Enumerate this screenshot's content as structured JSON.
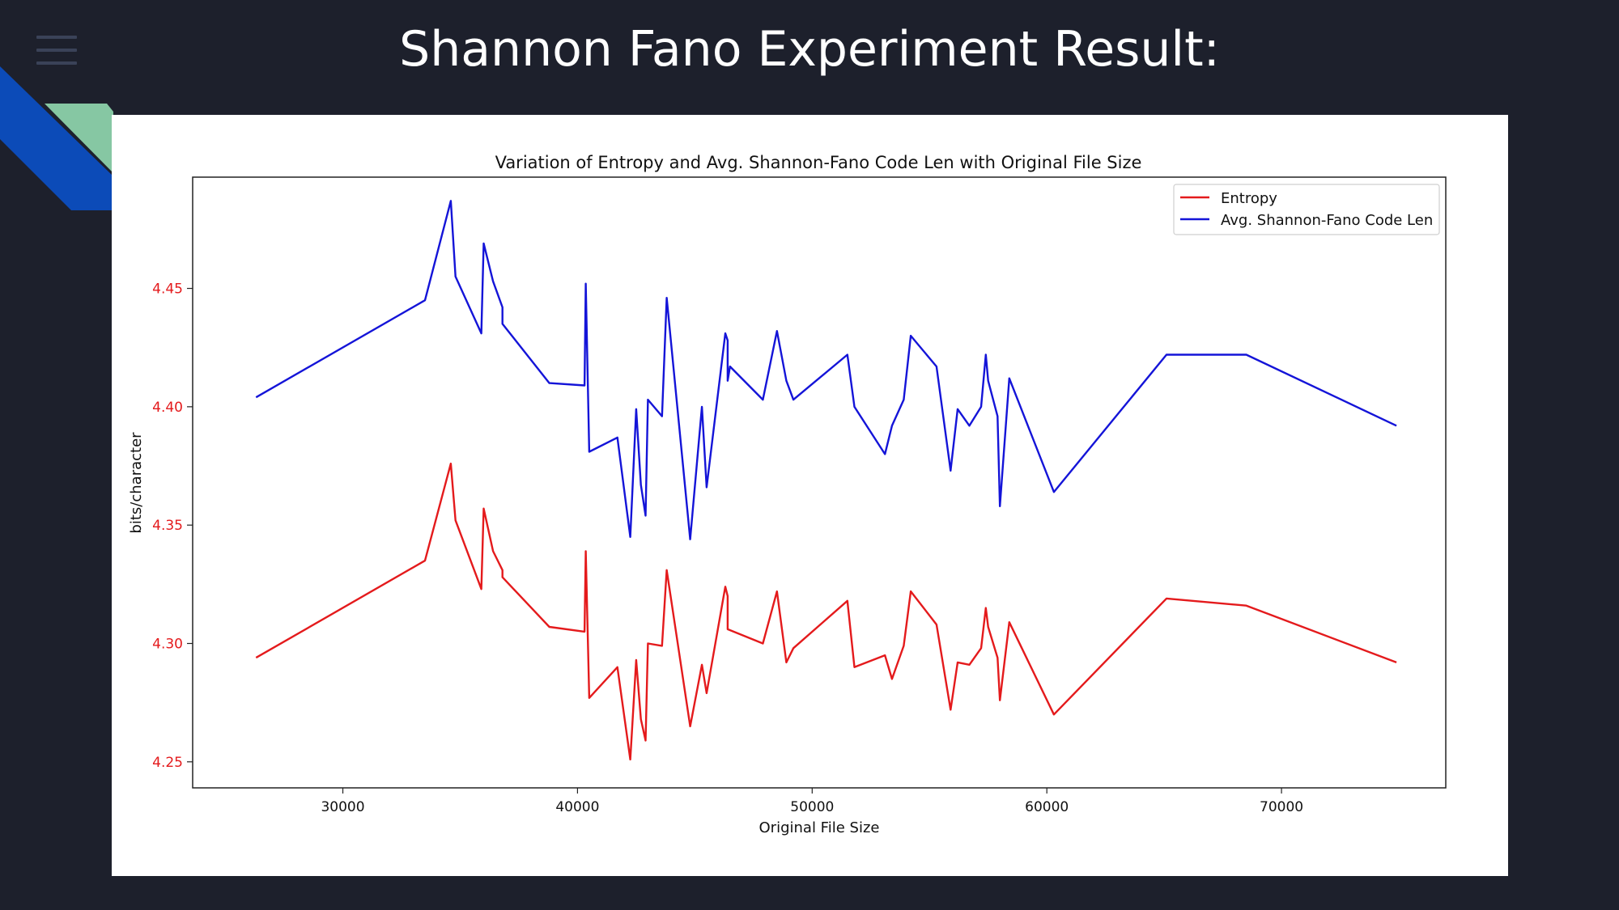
{
  "slide": {
    "title": "Shannon Fano Experiment Result:"
  },
  "colors": {
    "background": "#1d202c",
    "entropy": "#e41a1c",
    "avg_code_len": "#1414d8",
    "accent_blue": "#0c4bb8",
    "accent_green": "#86c7a3"
  },
  "icons": {
    "menu": "menu-icon"
  },
  "chart_data": {
    "type": "line",
    "title": "Variation of Entropy and Avg. Shannon-Fano Code Len with Original File Size",
    "xlabel": "Original File Size",
    "ylabel": "bits/character",
    "xlim": [
      23600,
      77000
    ],
    "ylim": [
      4.239,
      4.497
    ],
    "xticks": [
      30000,
      40000,
      50000,
      60000,
      70000
    ],
    "xtick_labels": [
      "30000",
      "40000",
      "50000",
      "60000",
      "70000"
    ],
    "yticks": [
      4.25,
      4.3,
      4.35,
      4.4,
      4.45
    ],
    "ytick_labels": [
      "4.25",
      "4.30",
      "4.35",
      "4.40",
      "4.45"
    ],
    "ytick_color": "#e41a1c",
    "grid": false,
    "legend_position": "top-right",
    "series": [
      {
        "name": "Entropy",
        "color": "#e41a1c",
        "points": [
          [
            26300,
            4.294
          ],
          [
            33500,
            4.335
          ],
          [
            34600,
            4.376
          ],
          [
            34800,
            4.352
          ],
          [
            35900,
            4.323
          ],
          [
            36000,
            4.357
          ],
          [
            36400,
            4.339
          ],
          [
            36800,
            4.331
          ],
          [
            36800,
            4.328
          ],
          [
            38800,
            4.307
          ],
          [
            40300,
            4.305
          ],
          [
            40350,
            4.339
          ],
          [
            40500,
            4.277
          ],
          [
            41700,
            4.29
          ],
          [
            42250,
            4.251
          ],
          [
            42500,
            4.293
          ],
          [
            42700,
            4.268
          ],
          [
            42900,
            4.259
          ],
          [
            43000,
            4.3
          ],
          [
            43600,
            4.299
          ],
          [
            43800,
            4.331
          ],
          [
            44800,
            4.265
          ],
          [
            45300,
            4.291
          ],
          [
            45500,
            4.279
          ],
          [
            46300,
            4.324
          ],
          [
            46400,
            4.32
          ],
          [
            46400,
            4.306
          ],
          [
            47900,
            4.3
          ],
          [
            48500,
            4.322
          ],
          [
            48900,
            4.292
          ],
          [
            49200,
            4.298
          ],
          [
            51500,
            4.318
          ],
          [
            51800,
            4.29
          ],
          [
            53100,
            4.295
          ],
          [
            53400,
            4.285
          ],
          [
            53900,
            4.299
          ],
          [
            54200,
            4.322
          ],
          [
            55300,
            4.308
          ],
          [
            55900,
            4.272
          ],
          [
            56200,
            4.292
          ],
          [
            56700,
            4.291
          ],
          [
            57200,
            4.298
          ],
          [
            57400,
            4.315
          ],
          [
            57500,
            4.307
          ],
          [
            57900,
            4.294
          ],
          [
            58000,
            4.276
          ],
          [
            58400,
            4.309
          ],
          [
            60300,
            4.27
          ],
          [
            65100,
            4.319
          ],
          [
            68500,
            4.316
          ],
          [
            74900,
            4.292
          ]
        ]
      },
      {
        "name": "Avg. Shannon-Fano Code Len",
        "color": "#1414d8",
        "points": [
          [
            26300,
            4.404
          ],
          [
            33500,
            4.445
          ],
          [
            34600,
            4.487
          ],
          [
            34800,
            4.455
          ],
          [
            35900,
            4.431
          ],
          [
            36000,
            4.469
          ],
          [
            36400,
            4.453
          ],
          [
            36800,
            4.442
          ],
          [
            36800,
            4.435
          ],
          [
            38800,
            4.41
          ],
          [
            40300,
            4.409
          ],
          [
            40350,
            4.452
          ],
          [
            40500,
            4.381
          ],
          [
            41700,
            4.387
          ],
          [
            42250,
            4.345
          ],
          [
            42500,
            4.399
          ],
          [
            42700,
            4.367
          ],
          [
            42900,
            4.354
          ],
          [
            43000,
            4.403
          ],
          [
            43600,
            4.396
          ],
          [
            43800,
            4.446
          ],
          [
            44800,
            4.344
          ],
          [
            45300,
            4.4
          ],
          [
            45500,
            4.366
          ],
          [
            46300,
            4.431
          ],
          [
            46400,
            4.428
          ],
          [
            46400,
            4.411
          ],
          [
            46500,
            4.417
          ],
          [
            47900,
            4.403
          ],
          [
            48500,
            4.432
          ],
          [
            48900,
            4.411
          ],
          [
            49200,
            4.403
          ],
          [
            51500,
            4.422
          ],
          [
            51800,
            4.4
          ],
          [
            53100,
            4.38
          ],
          [
            53400,
            4.392
          ],
          [
            53900,
            4.403
          ],
          [
            54200,
            4.43
          ],
          [
            55300,
            4.417
          ],
          [
            55900,
            4.373
          ],
          [
            56200,
            4.399
          ],
          [
            56700,
            4.392
          ],
          [
            57200,
            4.4
          ],
          [
            57400,
            4.422
          ],
          [
            57500,
            4.411
          ],
          [
            57900,
            4.396
          ],
          [
            58000,
            4.358
          ],
          [
            58400,
            4.412
          ],
          [
            60300,
            4.364
          ],
          [
            65100,
            4.422
          ],
          [
            68500,
            4.422
          ],
          [
            74900,
            4.392
          ]
        ]
      }
    ]
  }
}
